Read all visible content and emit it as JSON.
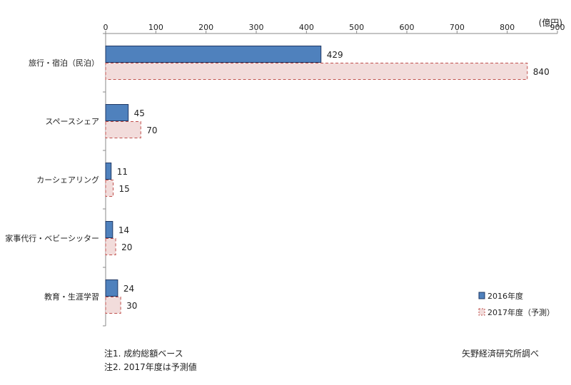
{
  "chart_data": {
    "type": "bar",
    "orientation": "horizontal",
    "unit_label": "(億円)",
    "categories": [
      "旅行・宿泊（民泊）",
      "スペースシェア",
      "カーシェアリング",
      "家事代行・ベビーシッター",
      "教育・生涯学習"
    ],
    "series": [
      {
        "name": "2016年度",
        "values": [
          429,
          45,
          11,
          14,
          24
        ],
        "fill": "#4f81bd",
        "stroke": "#1f3864",
        "dashed": false
      },
      {
        "name": "2017年度（予測）",
        "values": [
          840,
          70,
          15,
          20,
          30
        ],
        "fill": "#f2dcdb",
        "stroke": "#c0504d",
        "dashed": true
      }
    ],
    "xlim": [
      0,
      900
    ],
    "xticks": [
      0,
      100,
      200,
      300,
      400,
      500,
      600,
      700,
      800,
      900
    ],
    "legend_position": "bottom-right",
    "grid": false
  },
  "notes": {
    "note1": "注1. 成約総額ベース",
    "note2": "注2. 2017年度は予測値",
    "source": "矢野経済研究所調べ"
  }
}
